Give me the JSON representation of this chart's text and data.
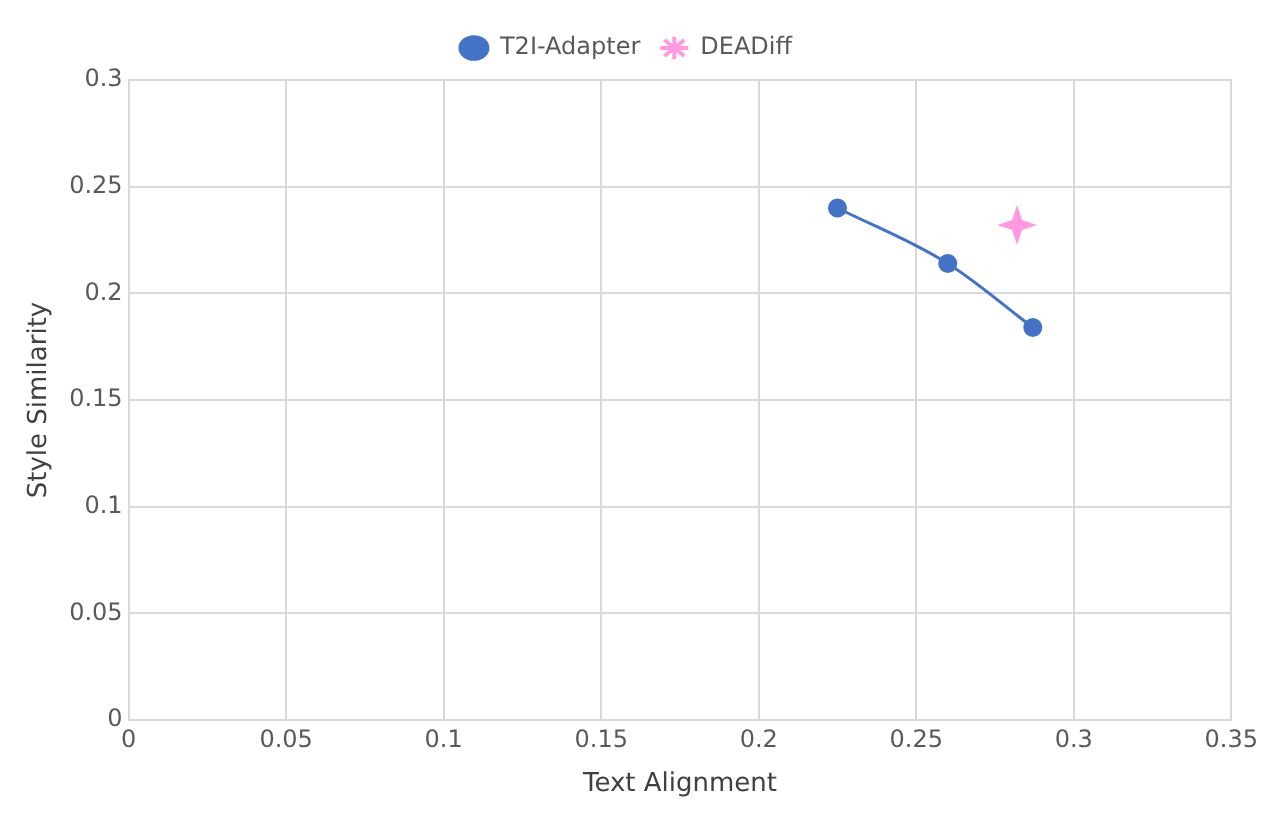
{
  "chart_data": {
    "type": "line",
    "xlabel": "Text Alignment",
    "ylabel": "Style Similarity",
    "series": [
      {
        "name": "T2I-Adapter",
        "color": "#4472c4",
        "marker": "circle",
        "x": [
          0.225,
          0.26,
          0.287
        ],
        "values": [
          0.24,
          0.214,
          0.184
        ]
      },
      {
        "name": "DEADiff",
        "type": "scatter",
        "color": "#ff99e0",
        "marker": "star",
        "x": [
          0.282
        ],
        "values": [
          0.232
        ]
      }
    ],
    "xlim": [
      0,
      0.35
    ],
    "xticks": [
      0,
      0.05,
      0.1,
      0.15,
      0.2,
      0.25,
      0.3,
      0.35
    ],
    "ylim": [
      0,
      0.3
    ],
    "yticks": [
      0,
      0.05,
      0.1,
      0.15,
      0.2,
      0.25,
      0.3
    ],
    "grid": true,
    "legend": "top"
  }
}
